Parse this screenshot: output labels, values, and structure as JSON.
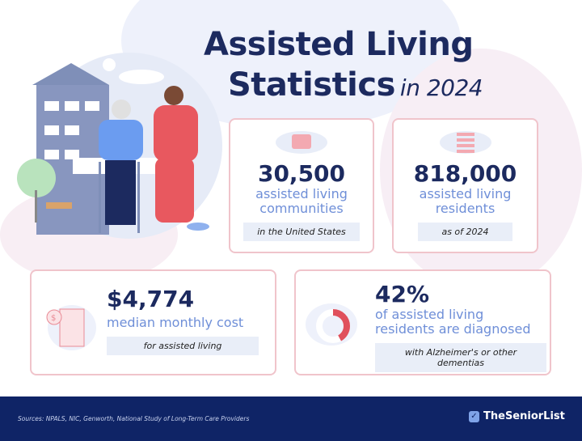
{
  "title": {
    "line1": "Assisted Living",
    "line2": "Statistics",
    "year": "in 2024"
  },
  "stats": [
    {
      "value": "30,500",
      "label1": "assisted living",
      "label2": "communities",
      "note": "in the United States",
      "icon": "building-on-us-map-icon"
    },
    {
      "value": "818,000",
      "label1": "assisted living",
      "label2": "residents",
      "note": "as of 2024",
      "icon": "people-on-us-map-icon"
    },
    {
      "value": "$4,774",
      "label1": "median monthly cost",
      "note": "for assisted living",
      "icon": "building-dollar-icon"
    },
    {
      "value": "42%",
      "label1": "of assisted living",
      "label2": "residents are diagnosed",
      "note": "with Alzheimer's or other dementias",
      "icon": "donut-42-percent-icon",
      "percent": 42
    }
  ],
  "footer": {
    "sources": "Sources: NPALS, NIC, Genworth, National Study of Long-Term Care Providers",
    "brand": "TheSeniorList"
  },
  "colors": {
    "navy": "#1c2a5f",
    "accent_blue": "#6f8fd8",
    "accent_red": "#e0505c",
    "footer": "#0f2466"
  }
}
